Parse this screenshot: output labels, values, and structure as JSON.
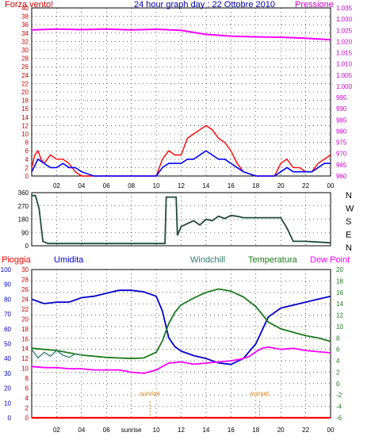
{
  "colors": {
    "wind": "#ff0000",
    "gust": "#0000ff",
    "pressure": "#ff00ff",
    "direction": "#1f4a3a",
    "humidity": "#0000cc",
    "windchill": "#2e7d6b",
    "temperature": "#1a7a1a",
    "dewpoint": "#ff00ff",
    "rain": "#ff0000",
    "grid": "#000000",
    "sun": "#e0881a",
    "frame": "#000000"
  },
  "chart_data": [
    {
      "type": "line",
      "title": "24 hour graph day : 22 Ottobre 2010",
      "left_label": "Forza vento!",
      "right_label": "Pressione",
      "x_ticks": [
        "02",
        "04",
        "06",
        "08",
        "10",
        "12",
        "14",
        "16",
        "18",
        "20",
        "22",
        "00"
      ],
      "y_left": {
        "ticks": [
          "0",
          "2",
          "4",
          "6",
          "8",
          "10",
          "12",
          "14",
          "16",
          "18",
          "20",
          "22",
          "24",
          "26",
          "28",
          "30",
          "32",
          "34",
          "36",
          "38",
          "40"
        ],
        "range": [
          0,
          40
        ]
      },
      "y_right": {
        "ticks": [
          "960",
          "965",
          "970",
          "975",
          "980",
          "985",
          "990",
          "995",
          "1.000",
          "1.005",
          "1.010",
          "1.015",
          "1.020",
          "1.025",
          "1.030",
          "1.035"
        ],
        "range": [
          960,
          1035
        ]
      },
      "series": [
        {
          "key": "wind",
          "axis": "left",
          "x": [
            0,
            0.25,
            0.5,
            0.75,
            1,
            1.5,
            2,
            2.5,
            3,
            3.5,
            4,
            5,
            6,
            7,
            8,
            9,
            10,
            10.5,
            11,
            11.5,
            12,
            12.5,
            13,
            13.5,
            14,
            14.5,
            15,
            15.5,
            16,
            16.5,
            17,
            18,
            19,
            19.5,
            20,
            20.5,
            21,
            21.5,
            22,
            22.5,
            23,
            23.5,
            24
          ],
          "y": [
            2,
            5,
            6,
            4,
            3,
            5,
            4,
            4,
            3,
            1,
            0,
            0,
            0,
            0,
            0,
            0,
            0,
            4,
            6,
            5,
            5,
            9,
            10,
            11,
            12,
            11,
            9,
            8,
            6,
            3,
            1,
            0,
            0,
            0,
            3,
            4,
            2,
            2,
            1,
            1,
            3,
            4,
            5
          ]
        },
        {
          "key": "gust",
          "axis": "left",
          "x": [
            0,
            0.5,
            1,
            1.5,
            2,
            2.5,
            3,
            3.5,
            4,
            5,
            6,
            7,
            8,
            9,
            10,
            10.5,
            11,
            11.5,
            12,
            12.5,
            13,
            13.5,
            14,
            14.5,
            15,
            15.5,
            16,
            16.5,
            17,
            18,
            19,
            19.5,
            20,
            20.5,
            21,
            21.5,
            22,
            22.5,
            23,
            23.5,
            24
          ],
          "y": [
            1,
            4,
            3,
            2,
            2,
            3,
            2,
            2,
            1,
            0,
            0,
            0,
            0,
            0,
            0,
            2,
            3,
            3,
            3,
            4,
            4,
            5,
            6,
            5,
            4,
            4,
            3,
            2,
            1,
            0,
            0,
            0,
            1,
            2,
            1,
            1,
            1,
            1,
            2,
            3,
            3
          ]
        },
        {
          "key": "pressure",
          "axis": "right",
          "x": [
            0,
            2,
            4,
            6,
            8,
            10,
            12,
            14,
            16,
            18,
            20,
            22,
            24
          ],
          "y": [
            1025.2,
            1025.6,
            1025.3,
            1025.6,
            1025.2,
            1025.5,
            1025.0,
            1023.2,
            1022.4,
            1022.1,
            1021.9,
            1021.5,
            1020.8
          ]
        }
      ]
    },
    {
      "type": "line",
      "title": "",
      "y_ticks": [
        "0",
        "90",
        "180",
        "270",
        "360"
      ],
      "y_range": [
        0,
        360
      ],
      "compass": [
        "N",
        "W",
        "S",
        "E",
        "N"
      ],
      "series": [
        {
          "key": "direction",
          "x": [
            0,
            0.3,
            0.6,
            0.9,
            1.3,
            3,
            6,
            9,
            10.7,
            10.8,
            11.6,
            11.7,
            12,
            12.5,
            13,
            13.5,
            14,
            14.5,
            15,
            15.5,
            16,
            16.5,
            17,
            18,
            19,
            19.5,
            20,
            20.5,
            21,
            22,
            23,
            24
          ],
          "y": [
            340,
            340,
            250,
            30,
            15,
            15,
            15,
            15,
            15,
            330,
            330,
            70,
            130,
            150,
            170,
            140,
            180,
            170,
            200,
            185,
            205,
            200,
            190,
            190,
            190,
            190,
            190,
            120,
            30,
            30,
            25,
            20
          ]
        }
      ]
    },
    {
      "type": "line",
      "legend": [
        "Pioggia",
        "Umidita",
        "Windchill",
        "Temperatura",
        "Dew Point"
      ],
      "x_ticks": [
        "02",
        "04",
        "06",
        "sunrise",
        "10",
        "12",
        "14",
        "16",
        "18",
        "20",
        "22",
        "00"
      ],
      "annotations": [
        {
          "label": "sunrise",
          "x": 9.5
        },
        {
          "label": "sunset",
          "x": 18.3
        }
      ],
      "y_humidity": {
        "ticks": [
          "0",
          "10",
          "20",
          "30",
          "40",
          "50",
          "60",
          "70",
          "80",
          "90",
          "100"
        ],
        "range": [
          0,
          100
        ]
      },
      "y_rain": {
        "ticks": [
          "0",
          "2",
          "4",
          "6",
          "8",
          "10",
          "12",
          "14",
          "16",
          "18",
          "20",
          "22",
          "24",
          "26",
          "28",
          "30"
        ],
        "range": [
          0,
          30
        ]
      },
      "y_temp": {
        "ticks": [
          "-6",
          "-4",
          "-2",
          "0",
          "2",
          "4",
          "6",
          "8",
          "10",
          "12",
          "14",
          "16",
          "18",
          "20"
        ],
        "range": [
          -6,
          20
        ]
      },
      "series": [
        {
          "key": "humidity",
          "axis": "humidity",
          "x": [
            0,
            1,
            2,
            3,
            4,
            5,
            6,
            7,
            8,
            9,
            10,
            10.5,
            11,
            11.5,
            12,
            13,
            14,
            15,
            16,
            17,
            18,
            19,
            20,
            21,
            22,
            23,
            24
          ],
          "y": [
            80,
            77,
            78,
            78,
            81,
            82,
            84,
            86,
            86,
            85,
            82,
            72,
            54,
            48,
            45,
            42,
            40,
            37,
            36,
            40,
            50,
            68,
            74,
            76,
            78,
            80,
            82
          ]
        },
        {
          "key": "temperature",
          "axis": "temp",
          "x": [
            0,
            1,
            2,
            3,
            4,
            5,
            6,
            7,
            8,
            9,
            10,
            10.5,
            11,
            11.5,
            12,
            13,
            14,
            15,
            16,
            17,
            18,
            19,
            20,
            21,
            22,
            23,
            24
          ],
          "y": [
            6.2,
            6.0,
            5.8,
            5.4,
            5.0,
            4.8,
            4.6,
            4.5,
            4.4,
            4.5,
            5.5,
            7.5,
            10.5,
            12.5,
            13.8,
            15.0,
            16.0,
            16.6,
            16.2,
            15.2,
            13.5,
            10.8,
            9.6,
            9.0,
            8.4,
            8.0,
            7.4
          ]
        },
        {
          "key": "windchill",
          "axis": "temp",
          "x": [
            0,
            0.5,
            1,
            1.5,
            2,
            2.5,
            3,
            3.5,
            4
          ],
          "y": [
            6.0,
            4.5,
            5.5,
            4.8,
            5.8,
            5.0,
            4.6,
            5.2,
            5.0
          ]
        },
        {
          "key": "dewpoint",
          "axis": "temp",
          "x": [
            0,
            1,
            2,
            3,
            4,
            5,
            6,
            7,
            8,
            9,
            10,
            11,
            12,
            13,
            14,
            15,
            16,
            17,
            17.5,
            18,
            18.5,
            19,
            20,
            21,
            22,
            23,
            24
          ],
          "y": [
            3.0,
            2.8,
            2.8,
            2.6,
            2.6,
            2.4,
            2.4,
            2.4,
            2.0,
            1.8,
            2.4,
            3.6,
            3.8,
            3.4,
            3.6,
            3.8,
            4.0,
            4.4,
            4.8,
            5.6,
            6.2,
            6.4,
            6.0,
            6.2,
            5.8,
            5.6,
            5.4
          ]
        },
        {
          "key": "rain",
          "axis": "rain",
          "x": [
            0,
            24
          ],
          "y": [
            0,
            0
          ]
        }
      ]
    }
  ]
}
